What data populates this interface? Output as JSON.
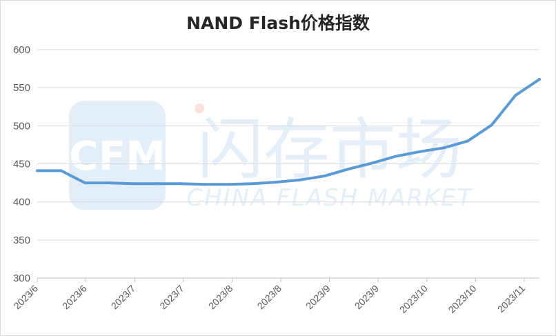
{
  "chart_data": {
    "type": "line",
    "title": "NAND Flash价格指数",
    "xlabel": "",
    "ylabel": "",
    "ylim": [
      300,
      600
    ],
    "yticks": [
      300,
      350,
      400,
      450,
      500,
      550,
      600
    ],
    "x_tick_labels": [
      "2023/6",
      "2023/6",
      "2023/7",
      "2023/7",
      "2023/8",
      "2023/8",
      "2023/9",
      "2023/9",
      "2023/10",
      "2023/10",
      "2023/11"
    ],
    "grid": true,
    "legend": "none",
    "line_color": "#5b9bd5",
    "series": [
      {
        "values": [
          441,
          441,
          425,
          425,
          424,
          424,
          424,
          423,
          423,
          424,
          426,
          429,
          434,
          443,
          451,
          460,
          466,
          471,
          480,
          501,
          540,
          561
        ]
      }
    ]
  },
  "watermark": {
    "logo_text": "CFM",
    "cn_text": "闪存市场",
    "en_text": "CHINA FLASH MARKET",
    "color": "#dbe8f5"
  }
}
